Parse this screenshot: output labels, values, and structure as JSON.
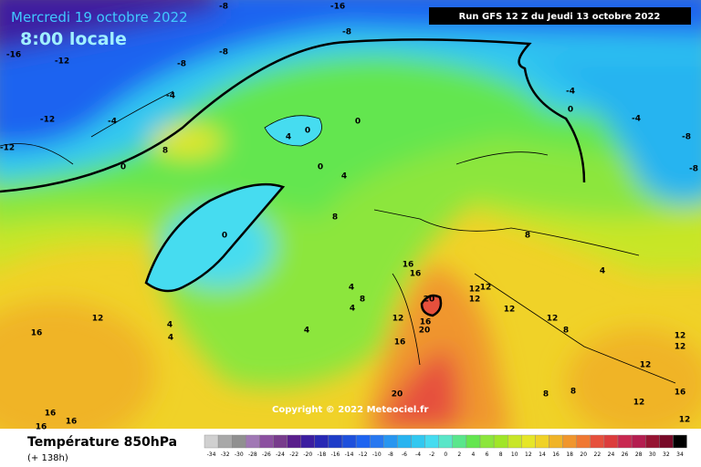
{
  "header": {
    "date": "Mercredi 19 octobre 2022",
    "time": "8:00 locale",
    "run": "Run GFS 12 Z du Jeudi 13 octobre 2022"
  },
  "footer": {
    "title": "Température 850hPa",
    "lead": "(+ 138h)",
    "copyright": "Copyright © 2022 Meteociel.fr"
  },
  "colorbar": {
    "ticks": [
      -34,
      -32,
      -30,
      -28,
      -26,
      -24,
      -22,
      -20,
      -18,
      -16,
      -14,
      -12,
      -10,
      -8,
      -6,
      -4,
      -2,
      0,
      2,
      4,
      6,
      8,
      10,
      12,
      14,
      16,
      18,
      20,
      22,
      24,
      26,
      28,
      30,
      32,
      34
    ],
    "colors": [
      "#d0d0d0",
      "#a8a8a8",
      "#909090",
      "#a078b4",
      "#8c50a0",
      "#783c8c",
      "#5a1e8c",
      "#3c1ea0",
      "#2828b4",
      "#1e3cc8",
      "#1e50dc",
      "#1e64f0",
      "#2878f0",
      "#2896f0",
      "#28b4f0",
      "#32c8f0",
      "#46dcf0",
      "#5ae6c8",
      "#5ae68c",
      "#64e650",
      "#8ce63c",
      "#a0e628",
      "#c8e628",
      "#e6e628",
      "#f0d228",
      "#f0b428",
      "#f0962d",
      "#f07832",
      "#e6503c",
      "#dc3c3c",
      "#c82850",
      "#b41e50",
      "#961432",
      "#780a28",
      "#000000"
    ]
  },
  "contour_labels": [
    -16,
    -12,
    -12,
    -12,
    -8,
    -16,
    -8,
    -8,
    -8,
    -4,
    -4,
    8,
    0,
    4,
    0,
    0,
    0,
    4,
    0,
    8,
    4,
    4,
    4,
    8,
    12,
    16,
    4,
    4,
    16,
    16,
    20,
    16,
    20,
    12,
    16,
    12,
    12,
    12,
    12,
    12,
    8,
    4,
    -4,
    0,
    -4,
    -8,
    -8,
    8,
    12,
    12,
    12,
    20,
    16,
    16,
    16,
    12,
    16,
    8,
    8,
    12
  ]
}
